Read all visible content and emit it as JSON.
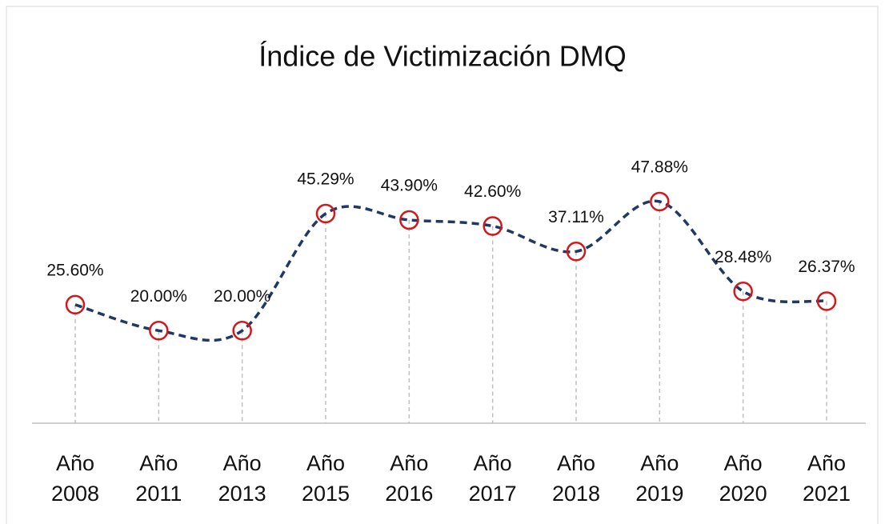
{
  "chart_data": {
    "type": "line",
    "title": "Índice de Victimización DMQ",
    "categories": [
      "Año 2008",
      "Año 2011",
      "Año 2013",
      "Año 2015",
      "Año 2016",
      "Año 2017",
      "Año 2018",
      "Año 2019",
      "Año 2020",
      "Año 2021"
    ],
    "values": [
      25.6,
      20,
      20,
      45.29,
      43.9,
      42.6,
      37.11,
      47.88,
      28.48,
      26.37
    ],
    "value_labels": [
      "25.60%",
      "20.00%",
      "20.00%",
      "45.29%",
      "43.90%",
      "42.60%",
      "37.11%",
      "47.88%",
      "28.48%",
      "26.37%"
    ],
    "color": "#1f3864",
    "marker_color": "#d0191b"
  }
}
